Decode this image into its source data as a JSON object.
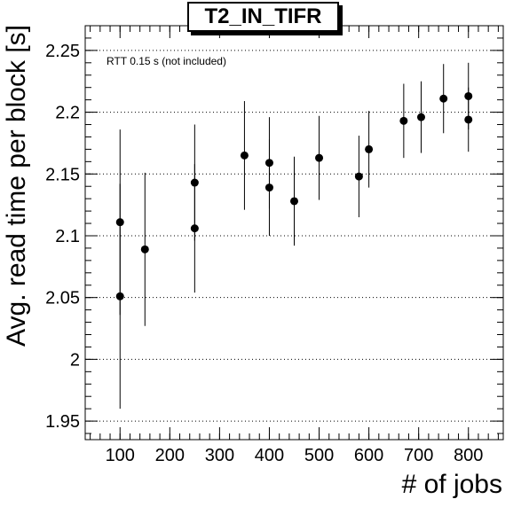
{
  "chart_data": {
    "type": "scatter",
    "title": "T2_IN_TIFR",
    "xlabel": "# of jobs",
    "ylabel": "Avg. read time per block [s]",
    "annotation": "RTT 0.15 s (not included)",
    "xlim": [
      30,
      870
    ],
    "ylim": [
      1.935,
      2.27
    ],
    "xticks": [
      "100",
      "200",
      "300",
      "400",
      "500",
      "600",
      "700",
      "800"
    ],
    "yticks": [
      "1.95",
      "2",
      "2.05",
      "2.1",
      "2.15",
      "2.2",
      "2.25"
    ],
    "grid": "horizontal dotted",
    "points": [
      {
        "x": 100,
        "y": 2.111,
        "err": 0.075
      },
      {
        "x": 100,
        "y": 2.051,
        "err": 0.091
      },
      {
        "x": 150,
        "y": 2.089,
        "err": 0.062
      },
      {
        "x": 250,
        "y": 2.143,
        "err": 0.047
      },
      {
        "x": 250,
        "y": 2.106,
        "err": 0.052
      },
      {
        "x": 350,
        "y": 2.165,
        "err": 0.044
      },
      {
        "x": 400,
        "y": 2.159,
        "err": 0.037
      },
      {
        "x": 400,
        "y": 2.139,
        "err": 0.039
      },
      {
        "x": 450,
        "y": 2.128,
        "err": 0.036
      },
      {
        "x": 500,
        "y": 2.163,
        "err": 0.034
      },
      {
        "x": 580,
        "y": 2.148,
        "err": 0.033
      },
      {
        "x": 600,
        "y": 2.17,
        "err": 0.031
      },
      {
        "x": 670,
        "y": 2.193,
        "err": 0.03
      },
      {
        "x": 705,
        "y": 2.196,
        "err": 0.029
      },
      {
        "x": 750,
        "y": 2.211,
        "err": 0.028
      },
      {
        "x": 800,
        "y": 2.213,
        "err": 0.027
      },
      {
        "x": 800,
        "y": 2.194,
        "err": 0.026
      }
    ]
  }
}
